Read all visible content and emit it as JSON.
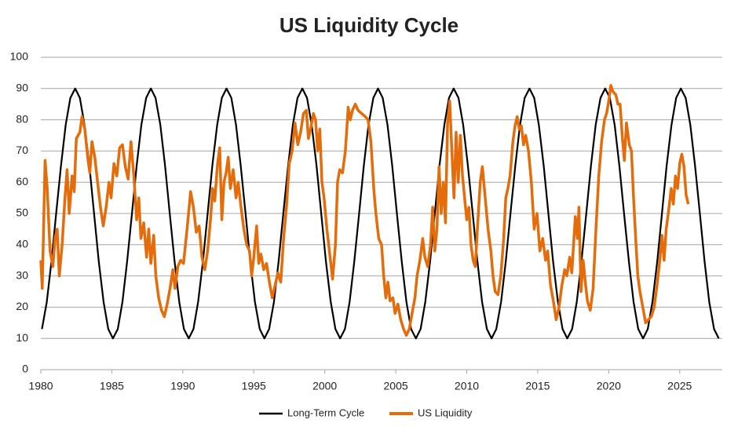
{
  "chart_data": {
    "type": "line",
    "title": "US Liquidity Cycle",
    "xlim": [
      1980,
      2028
    ],
    "xticks": [
      1980,
      1985,
      1990,
      1995,
      2000,
      2005,
      2010,
      2015,
      2020,
      2025
    ],
    "ylim": [
      0,
      100
    ],
    "yticks": [
      0,
      10,
      20,
      30,
      40,
      50,
      60,
      70,
      80,
      90,
      100
    ],
    "grid": true,
    "legend": "bottom",
    "series": [
      {
        "name": "Long-Term Cycle",
        "color": "#000000",
        "x": [
          1980.08,
          1980.42,
          1980.75,
          1981.08,
          1981.42,
          1981.75,
          1982.08,
          1982.42,
          1982.75,
          1983.08,
          1983.42,
          1983.75,
          1984.08,
          1984.42,
          1984.75,
          1985.08,
          1985.42,
          1985.75,
          1986.08,
          1986.42,
          1986.75,
          1987.08,
          1987.42,
          1987.75,
          1988.08,
          1988.42,
          1988.75,
          1989.08,
          1989.42,
          1989.75,
          1990.08,
          1990.42,
          1990.75,
          1991.08,
          1991.42,
          1991.75,
          1992.08,
          1992.42,
          1992.75,
          1993.08,
          1993.42,
          1993.75,
          1994.08,
          1994.42,
          1994.75,
          1995.08,
          1995.42,
          1995.75,
          1996.08,
          1996.42,
          1996.75,
          1997.08,
          1997.42,
          1997.75,
          1998.08,
          1998.42,
          1998.75,
          1999.08,
          1999.42,
          1999.75,
          2000.08,
          2000.42,
          2000.75,
          2001.08,
          2001.42,
          2001.75,
          2002.08,
          2002.42,
          2002.75,
          2003.08,
          2003.42,
          2003.75,
          2004.08,
          2004.42,
          2004.75,
          2005.08,
          2005.42,
          2005.75,
          2006.08,
          2006.42,
          2006.75,
          2007.08,
          2007.42,
          2007.75,
          2008.08,
          2008.42,
          2008.75,
          2009.08,
          2009.42,
          2009.75,
          2010.08,
          2010.42,
          2010.75,
          2011.08,
          2011.42,
          2011.75,
          2012.08,
          2012.42,
          2012.75,
          2013.08,
          2013.42,
          2013.75,
          2014.08,
          2014.42,
          2014.75,
          2015.08,
          2015.42,
          2015.75,
          2016.08,
          2016.42,
          2016.75,
          2017.08,
          2017.42,
          2017.75,
          2018.08,
          2018.42,
          2018.75,
          2019.08,
          2019.42,
          2019.75,
          2020.08,
          2020.42,
          2020.75,
          2021.08,
          2021.42,
          2021.75,
          2022.08,
          2022.42,
          2022.75,
          2023.08,
          2023.42,
          2023.75,
          2024.08,
          2024.42,
          2024.75,
          2025.08,
          2025.42,
          2025.75,
          2026.08,
          2026.42,
          2026.75,
          2027.08,
          2027.42,
          2027.75
        ],
        "values": [
          13.0,
          21.7,
          34.7,
          50,
          65.3,
          78.3,
          87.0,
          90,
          87.0,
          78.3,
          65.3,
          50,
          34.7,
          21.7,
          13.0,
          10,
          13.0,
          21.7,
          34.7,
          50,
          65.3,
          78.3,
          87.0,
          90,
          87.0,
          78.3,
          65.3,
          50,
          34.7,
          21.7,
          13.0,
          10,
          13.0,
          21.7,
          34.7,
          50,
          65.3,
          78.3,
          87.0,
          90,
          87.0,
          78.3,
          65.3,
          50,
          34.7,
          21.7,
          13.0,
          10,
          13.0,
          21.7,
          34.7,
          50,
          65.3,
          78.3,
          87.0,
          90,
          87.0,
          78.3,
          65.3,
          50,
          34.7,
          21.7,
          13.0,
          10,
          13.0,
          21.7,
          34.7,
          50,
          65.3,
          78.3,
          87.0,
          90,
          87.0,
          78.3,
          65.3,
          50,
          34.7,
          21.7,
          13.0,
          10,
          13.0,
          21.7,
          34.7,
          50,
          65.3,
          78.3,
          87.0,
          90,
          87.0,
          78.3,
          65.3,
          50,
          34.7,
          21.7,
          13.0,
          10,
          13.0,
          21.7,
          34.7,
          50,
          65.3,
          78.3,
          87.0,
          90,
          87.0,
          78.3,
          65.3,
          50,
          34.7,
          21.7,
          13.0,
          10,
          13.0,
          21.7,
          34.7,
          50,
          65.3,
          78.3,
          87.0,
          90,
          87.0,
          78.3,
          65.3,
          50,
          34.7,
          21.7,
          13.0,
          10,
          13.0,
          21.7,
          34.7,
          50,
          65.3,
          78.3,
          87.0,
          90,
          87.0,
          78.3,
          65.3,
          50,
          34.7,
          21.7,
          13.0,
          10
        ]
      },
      {
        "name": "US Liquidity",
        "color": "#e46c0a",
        "x": [
          1980.0,
          1980.1,
          1980.3,
          1980.45,
          1980.65,
          1980.85,
          1981.0,
          1981.15,
          1981.3,
          1981.5,
          1981.7,
          1981.85,
          1982.0,
          1982.2,
          1982.35,
          1982.5,
          1982.75,
          1982.9,
          1983.1,
          1983.3,
          1983.45,
          1983.6,
          1983.8,
          1984.0,
          1984.2,
          1984.4,
          1984.6,
          1984.8,
          1984.95,
          1985.15,
          1985.35,
          1985.55,
          1985.75,
          1985.95,
          1986.15,
          1986.35,
          1986.55,
          1986.75,
          1986.9,
          1987.05,
          1987.25,
          1987.45,
          1987.6,
          1987.75,
          1987.95,
          1988.1,
          1988.3,
          1988.5,
          1988.7,
          1988.9,
          1989.1,
          1989.3,
          1989.45,
          1989.65,
          1989.85,
          1990.05,
          1990.3,
          1990.55,
          1990.75,
          1990.95,
          1991.15,
          1991.35,
          1991.55,
          1991.75,
          1991.95,
          1992.1,
          1992.25,
          1992.45,
          1992.6,
          1992.75,
          1992.9,
          1993.05,
          1993.2,
          1993.35,
          1993.55,
          1993.75,
          1993.9,
          1994.1,
          1994.3,
          1994.5,
          1994.7,
          1994.85,
          1995.0,
          1995.2,
          1995.35,
          1995.5,
          1995.7,
          1995.9,
          1996.1,
          1996.3,
          1996.5,
          1996.7,
          1996.9,
          1997.1,
          1997.3,
          1997.5,
          1997.7,
          1997.9,
          1998.1,
          1998.3,
          1998.5,
          1998.7,
          1998.85,
          1999.0,
          1999.2,
          1999.35,
          1999.5,
          1999.65,
          1999.8,
          1999.95,
          2000.15,
          2000.35,
          2000.55,
          2000.75,
          2000.9,
          2001.05,
          2001.25,
          2001.45,
          2001.65,
          2001.8,
          2001.95,
          2002.15,
          2002.35,
          2002.6,
          2002.85,
          2003.05,
          2003.25,
          2003.45,
          2003.6,
          2003.8,
          2004.0,
          2004.15,
          2004.3,
          2004.45,
          2004.6,
          2004.8,
          2004.95,
          2005.15,
          2005.35,
          2005.55,
          2005.75,
          2005.95,
          2006.15,
          2006.35,
          2006.5,
          2006.7,
          2006.9,
          2007.05,
          2007.25,
          2007.45,
          2007.6,
          2007.75,
          2007.9,
          2008.05,
          2008.2,
          2008.35,
          2008.5,
          2008.65,
          2008.8,
          2008.95,
          2009.1,
          2009.25,
          2009.4,
          2009.55,
          2009.7,
          2009.85,
          2010.0,
          2010.15,
          2010.3,
          2010.45,
          2010.6,
          2010.75,
          2010.95,
          2011.1,
          2011.3,
          2011.5,
          2011.7,
          2011.85,
          2012.0,
          2012.2,
          2012.4,
          2012.6,
          2012.75,
          2012.9,
          2013.05,
          2013.25,
          2013.4,
          2013.55,
          2013.7,
          2013.85,
          2014.0,
          2014.15,
          2014.35,
          2014.55,
          2014.75,
          2014.95,
          2015.15,
          2015.35,
          2015.55,
          2015.7,
          2015.9,
          2016.1,
          2016.3,
          2016.5,
          2016.7,
          2016.9,
          2017.05,
          2017.25,
          2017.4,
          2017.55,
          2017.65,
          2017.8,
          2017.9,
          2018.05,
          2018.2,
          2018.35,
          2018.5,
          2018.7,
          2018.9,
          2019.1,
          2019.3,
          2019.5,
          2019.7,
          2019.85,
          2020.0,
          2020.15,
          2020.3,
          2020.5,
          2020.65,
          2020.8,
          2020.95,
          2021.1,
          2021.25,
          2021.45,
          2021.6,
          2021.75,
          2021.9,
          2022.05,
          2022.2,
          2022.4,
          2022.6,
          2022.8,
          2023.0,
          2023.2,
          2023.4,
          2023.6,
          2023.75,
          2023.9,
          2024.05,
          2024.25,
          2024.4,
          2024.55,
          2024.7,
          2024.85,
          2025.0,
          2025.15,
          2025.3,
          2025.45,
          2025.6
        ],
        "values": [
          35,
          26,
          67,
          58,
          38,
          33,
          42,
          45,
          30,
          40,
          55,
          64,
          50,
          62,
          57,
          74,
          76,
          81,
          77,
          68,
          63,
          73,
          68,
          60,
          52,
          46,
          52,
          60,
          55,
          66,
          62,
          71,
          72,
          65,
          61,
          73,
          62,
          48,
          55,
          42,
          47,
          36,
          45,
          34,
          43,
          30,
          23,
          19,
          17,
          21,
          26,
          32,
          26,
          33,
          35,
          34,
          45,
          57,
          52,
          44,
          46,
          36,
          32,
          38,
          48,
          58,
          54,
          66,
          71,
          48,
          60,
          63,
          68,
          58,
          64,
          55,
          60,
          52,
          45,
          40,
          38,
          30,
          36,
          46,
          34,
          37,
          32,
          34,
          28,
          23,
          27,
          31,
          28,
          42,
          52,
          66,
          70,
          79,
          72,
          76,
          82,
          83,
          74,
          77,
          82,
          80,
          70,
          77,
          60,
          55,
          45,
          37,
          29,
          40,
          60,
          64,
          63,
          70,
          84,
          80,
          83,
          85,
          83,
          82,
          81,
          80,
          73,
          58,
          50,
          42,
          40,
          30,
          23,
          28,
          22,
          23,
          18,
          21,
          16,
          13,
          11,
          13,
          18,
          23,
          30,
          35,
          42,
          36,
          33,
          40,
          52,
          38,
          45,
          65,
          50,
          60,
          47,
          79,
          86,
          70,
          55,
          76,
          60,
          75,
          62,
          55,
          48,
          52,
          40,
          35,
          33,
          45,
          60,
          65,
          55,
          45,
          38,
          30,
          25,
          24,
          30,
          42,
          55,
          58,
          62,
          73,
          78,
          81,
          77,
          78,
          72,
          75,
          70,
          60,
          45,
          50,
          38,
          42,
          35,
          38,
          27,
          22,
          16,
          20,
          27,
          32,
          30,
          36,
          31,
          42,
          49,
          42,
          52,
          25,
          35,
          28,
          22,
          19,
          26,
          45,
          62,
          73,
          80,
          82,
          86,
          91,
          89,
          88,
          85,
          85,
          75,
          67,
          79,
          72,
          70,
          55,
          42,
          30,
          25,
          20,
          15,
          16,
          17,
          20,
          27,
          35,
          43,
          35,
          45,
          52,
          58,
          53,
          62,
          58,
          66,
          69,
          65,
          56,
          53
        ]
      }
    ]
  }
}
